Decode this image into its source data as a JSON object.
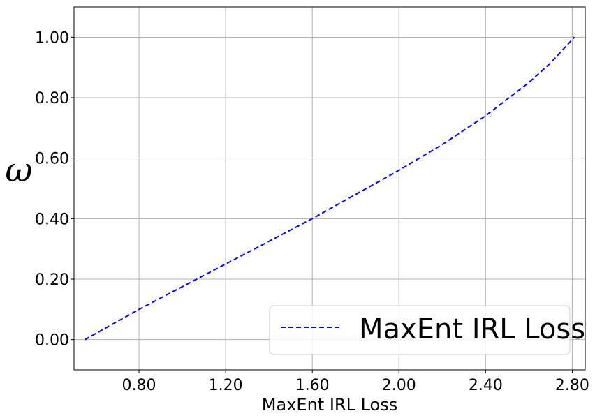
{
  "chart_data": {
    "type": "line",
    "xlabel": "MaxEnt IRL Loss",
    "ylabel": "ω",
    "xlim": [
      0.5,
      2.86
    ],
    "ylim": [
      -0.1,
      1.1
    ],
    "xticks": [
      0.8,
      1.2,
      1.6,
      2.0,
      2.4,
      2.8
    ],
    "xtick_labels": [
      "0.80",
      "1.20",
      "1.60",
      "2.00",
      "2.40",
      "2.80"
    ],
    "yticks": [
      0.0,
      0.2,
      0.4,
      0.6,
      0.8,
      1.0
    ],
    "ytick_labels": [
      "0.00",
      "0.20",
      "0.40",
      "0.60",
      "0.80",
      "1.00"
    ],
    "grid": true,
    "legend_position": "bottom-right",
    "series": [
      {
        "name": "MaxEnt IRL Loss",
        "color": "#0000ff",
        "line_style": "dashed",
        "x": [
          0.55,
          0.8,
          1.0,
          1.2,
          1.4,
          1.6,
          1.8,
          2.0,
          2.2,
          2.4,
          2.6,
          2.7,
          2.81
        ],
        "y": [
          0.0,
          0.1,
          0.175,
          0.25,
          0.325,
          0.4,
          0.48,
          0.56,
          0.645,
          0.74,
          0.85,
          0.915,
          1.0
        ]
      }
    ]
  }
}
